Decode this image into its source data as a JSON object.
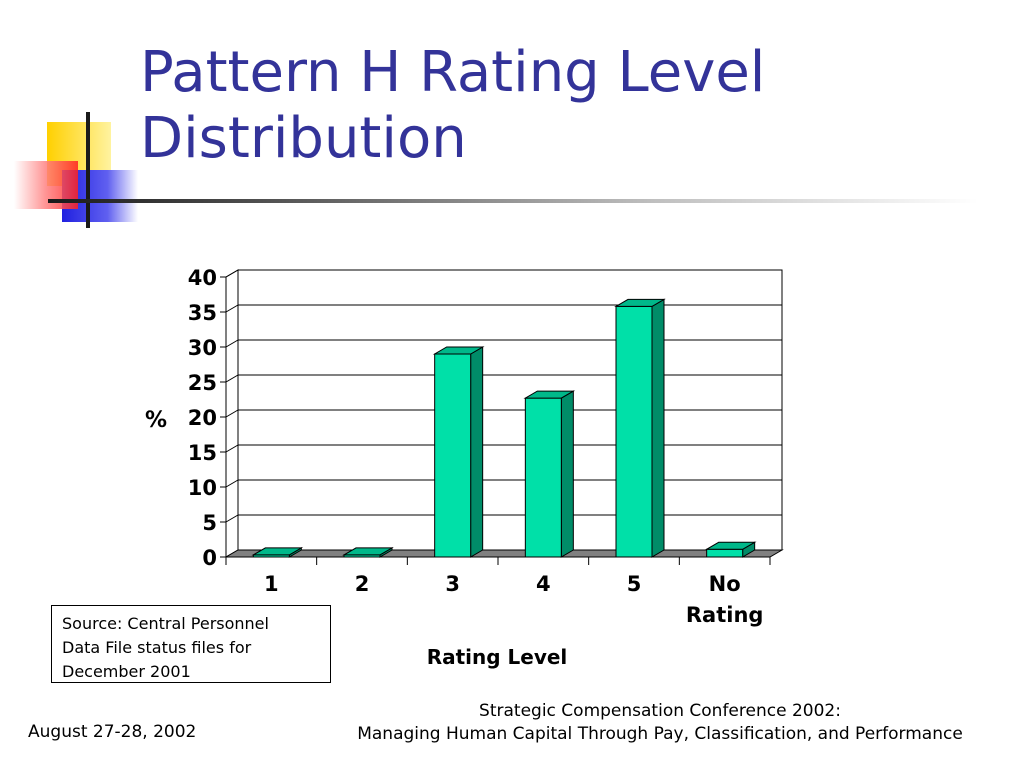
{
  "slide": {
    "title_line1": "Pattern H Rating Level",
    "title_line2": "Distribution",
    "source_line1": "Source:  Central Personnel",
    "source_line2": "Data File status files for",
    "source_line3": "December 2001",
    "footer_date": "August 27-28, 2002",
    "footer_conf_line1": "Strategic Compensation Conference 2002:",
    "footer_conf_line2": "Managing Human Capital Through Pay, Classification, and Performance",
    "title_color": "#333399"
  },
  "chart_data": {
    "type": "bar",
    "categories": [
      "1",
      "2",
      "3",
      "4",
      "5",
      "No Rating"
    ],
    "values": [
      0.3,
      0.3,
      29,
      22.7,
      35.8,
      1.1
    ],
    "title": "",
    "xlabel": "Rating Level",
    "ylabel": "%",
    "ylim": [
      0,
      40
    ],
    "yticks": [
      0,
      5,
      10,
      15,
      20,
      25,
      30,
      35,
      40
    ],
    "grid": true,
    "three_d": true,
    "bar_color": "#00e0a8",
    "bar_side_color": "#008c68",
    "bar_top_color": "#00b88a",
    "floor_color": "#808080"
  }
}
